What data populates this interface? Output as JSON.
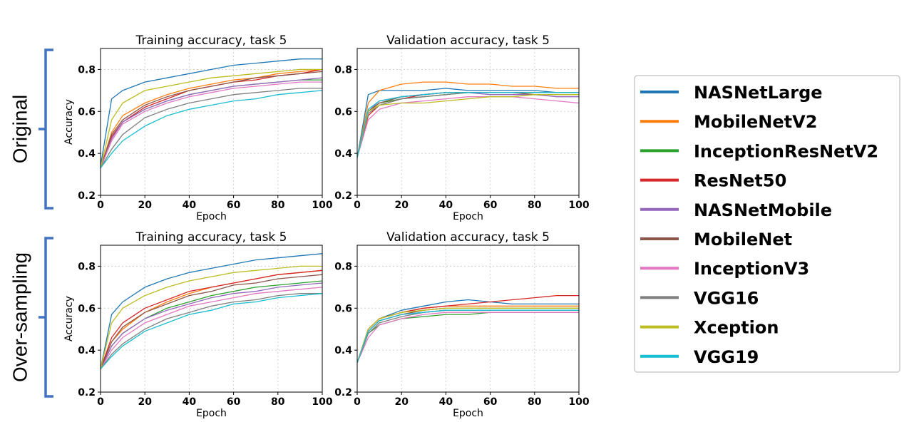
{
  "row_labels": [
    "Original",
    "Over-sampling"
  ],
  "legend": [
    {
      "name": "NASNetLarge",
      "color": "#1f77b4"
    },
    {
      "name": "MobileNetV2",
      "color": "#ff7f0e"
    },
    {
      "name": "InceptionResNetV2",
      "color": "#2ca02c"
    },
    {
      "name": "ResNet50",
      "color": "#d62728"
    },
    {
      "name": "NASNetMobile",
      "color": "#9467bd"
    },
    {
      "name": "MobileNet",
      "color": "#8c564b"
    },
    {
      "name": "InceptionV3",
      "color": "#e377c2"
    },
    {
      "name": "VGG16",
      "color": "#7f7f7f"
    },
    {
      "name": "Xception",
      "color": "#bcbd22"
    },
    {
      "name": "VGG19",
      "color": "#17becf"
    }
  ],
  "chart_data": [
    {
      "type": "line",
      "title": "Training accuracy, task 5",
      "xlabel": "Epoch",
      "ylabel": "Accuracy",
      "xlim": [
        0,
        100
      ],
      "ylim": [
        0.2,
        0.9
      ],
      "xticks": [
        "0",
        "20",
        "40",
        "60",
        "80",
        "100"
      ],
      "yticks": [
        "0.2",
        "0.4",
        "0.6",
        "0.8"
      ],
      "grid": true,
      "x": [
        0,
        5,
        10,
        20,
        30,
        40,
        50,
        60,
        70,
        80,
        90,
        100
      ],
      "series": [
        {
          "name": "NASNetLarge",
          "values": [
            0.34,
            0.66,
            0.7,
            0.74,
            0.76,
            0.78,
            0.8,
            0.82,
            0.83,
            0.84,
            0.85,
            0.85
          ]
        },
        {
          "name": "MobileNetV2",
          "values": [
            0.33,
            0.5,
            0.58,
            0.64,
            0.68,
            0.71,
            0.73,
            0.75,
            0.76,
            0.78,
            0.79,
            0.8
          ]
        },
        {
          "name": "InceptionResNetV2",
          "values": [
            0.33,
            0.48,
            0.55,
            0.61,
            0.65,
            0.68,
            0.7,
            0.72,
            0.73,
            0.74,
            0.75,
            0.75
          ]
        },
        {
          "name": "ResNet50",
          "values": [
            0.33,
            0.48,
            0.55,
            0.62,
            0.66,
            0.7,
            0.72,
            0.74,
            0.75,
            0.77,
            0.78,
            0.8
          ]
        },
        {
          "name": "NASNetMobile",
          "values": [
            0.33,
            0.47,
            0.55,
            0.61,
            0.65,
            0.68,
            0.7,
            0.72,
            0.73,
            0.74,
            0.75,
            0.76
          ]
        },
        {
          "name": "MobileNet",
          "values": [
            0.33,
            0.49,
            0.56,
            0.63,
            0.67,
            0.7,
            0.72,
            0.74,
            0.76,
            0.77,
            0.78,
            0.79
          ]
        },
        {
          "name": "InceptionV3",
          "values": [
            0.33,
            0.46,
            0.54,
            0.6,
            0.64,
            0.67,
            0.69,
            0.71,
            0.72,
            0.73,
            0.74,
            0.74
          ]
        },
        {
          "name": "VGG16",
          "values": [
            0.33,
            0.42,
            0.49,
            0.57,
            0.61,
            0.64,
            0.66,
            0.68,
            0.69,
            0.7,
            0.71,
            0.71
          ]
        },
        {
          "name": "Xception",
          "values": [
            0.33,
            0.56,
            0.64,
            0.7,
            0.72,
            0.74,
            0.76,
            0.77,
            0.78,
            0.79,
            0.8,
            0.8
          ]
        },
        {
          "name": "VGG19",
          "values": [
            0.33,
            0.4,
            0.46,
            0.53,
            0.58,
            0.61,
            0.63,
            0.65,
            0.66,
            0.68,
            0.69,
            0.7
          ]
        }
      ]
    },
    {
      "type": "line",
      "title": "Validation accuracy, task 5",
      "xlabel": "Epoch",
      "ylabel": "",
      "xlim": [
        0,
        100
      ],
      "ylim": [
        0.2,
        0.9
      ],
      "xticks": [
        "0",
        "20",
        "40",
        "60",
        "80",
        "100"
      ],
      "yticks": [
        "0.2",
        "0.4",
        "0.6",
        "0.8"
      ],
      "grid": true,
      "x": [
        0,
        5,
        10,
        20,
        30,
        40,
        50,
        60,
        70,
        80,
        90,
        100
      ],
      "series": [
        {
          "name": "NASNetLarge",
          "values": [
            0.38,
            0.68,
            0.7,
            0.7,
            0.7,
            0.71,
            0.7,
            0.7,
            0.7,
            0.7,
            0.69,
            0.69
          ]
        },
        {
          "name": "MobileNetV2",
          "values": [
            0.38,
            0.64,
            0.7,
            0.73,
            0.74,
            0.74,
            0.73,
            0.73,
            0.72,
            0.72,
            0.71,
            0.71
          ]
        },
        {
          "name": "InceptionResNetV2",
          "values": [
            0.38,
            0.6,
            0.64,
            0.66,
            0.67,
            0.68,
            0.69,
            0.69,
            0.69,
            0.69,
            0.69,
            0.69
          ]
        },
        {
          "name": "ResNet50",
          "values": [
            0.38,
            0.58,
            0.63,
            0.66,
            0.68,
            0.69,
            0.69,
            0.69,
            0.69,
            0.69,
            0.69,
            0.69
          ]
        },
        {
          "name": "NASNetMobile",
          "values": [
            0.38,
            0.6,
            0.65,
            0.67,
            0.68,
            0.69,
            0.69,
            0.68,
            0.68,
            0.68,
            0.67,
            0.67
          ]
        },
        {
          "name": "MobileNet",
          "values": [
            0.38,
            0.6,
            0.64,
            0.67,
            0.68,
            0.69,
            0.69,
            0.69,
            0.69,
            0.68,
            0.68,
            0.68
          ]
        },
        {
          "name": "InceptionV3",
          "values": [
            0.38,
            0.56,
            0.61,
            0.64,
            0.65,
            0.66,
            0.67,
            0.67,
            0.67,
            0.66,
            0.65,
            0.64
          ]
        },
        {
          "name": "VGG16",
          "values": [
            0.38,
            0.59,
            0.63,
            0.66,
            0.67,
            0.68,
            0.69,
            0.69,
            0.69,
            0.69,
            0.69,
            0.69
          ]
        },
        {
          "name": "Xception",
          "values": [
            0.38,
            0.6,
            0.63,
            0.64,
            0.64,
            0.65,
            0.66,
            0.67,
            0.67,
            0.68,
            0.68,
            0.68
          ]
        },
        {
          "name": "VGG19",
          "values": [
            0.38,
            0.61,
            0.65,
            0.67,
            0.68,
            0.69,
            0.69,
            0.69,
            0.69,
            0.69,
            0.69,
            0.69
          ]
        }
      ]
    },
    {
      "type": "line",
      "title": "Training accuracy, task 5",
      "xlabel": "Epoch",
      "ylabel": "Accuracy",
      "xlim": [
        0,
        100
      ],
      "ylim": [
        0.2,
        0.9
      ],
      "xticks": [
        "0",
        "20",
        "40",
        "60",
        "80",
        "100"
      ],
      "yticks": [
        "0.2",
        "0.4",
        "0.6",
        "0.8"
      ],
      "grid": true,
      "x": [
        0,
        5,
        10,
        20,
        30,
        40,
        50,
        60,
        70,
        80,
        90,
        100
      ],
      "series": [
        {
          "name": "NASNetLarge",
          "values": [
            0.31,
            0.57,
            0.63,
            0.7,
            0.74,
            0.77,
            0.79,
            0.81,
            0.83,
            0.84,
            0.85,
            0.86
          ]
        },
        {
          "name": "MobileNetV2",
          "values": [
            0.31,
            0.44,
            0.5,
            0.58,
            0.63,
            0.67,
            0.7,
            0.72,
            0.74,
            0.76,
            0.77,
            0.78
          ]
        },
        {
          "name": "InceptionResNetV2",
          "values": [
            0.31,
            0.42,
            0.48,
            0.55,
            0.6,
            0.63,
            0.66,
            0.68,
            0.7,
            0.71,
            0.72,
            0.73
          ]
        },
        {
          "name": "ResNet50",
          "values": [
            0.31,
            0.46,
            0.53,
            0.6,
            0.64,
            0.68,
            0.7,
            0.72,
            0.74,
            0.76,
            0.77,
            0.78
          ]
        },
        {
          "name": "NASNetMobile",
          "values": [
            0.31,
            0.42,
            0.48,
            0.55,
            0.59,
            0.62,
            0.65,
            0.67,
            0.68,
            0.7,
            0.71,
            0.72
          ]
        },
        {
          "name": "MobileNet",
          "values": [
            0.31,
            0.44,
            0.51,
            0.58,
            0.62,
            0.66,
            0.68,
            0.71,
            0.72,
            0.74,
            0.75,
            0.76
          ]
        },
        {
          "name": "InceptionV3",
          "values": [
            0.31,
            0.4,
            0.46,
            0.53,
            0.57,
            0.61,
            0.63,
            0.65,
            0.67,
            0.68,
            0.69,
            0.7
          ]
        },
        {
          "name": "VGG16",
          "values": [
            0.31,
            0.38,
            0.43,
            0.5,
            0.55,
            0.58,
            0.61,
            0.63,
            0.64,
            0.66,
            0.67,
            0.67
          ]
        },
        {
          "name": "Xception",
          "values": [
            0.31,
            0.53,
            0.6,
            0.66,
            0.7,
            0.73,
            0.75,
            0.77,
            0.78,
            0.79,
            0.8,
            0.8
          ]
        },
        {
          "name": "VGG19",
          "values": [
            0.31,
            0.37,
            0.42,
            0.49,
            0.53,
            0.57,
            0.59,
            0.62,
            0.63,
            0.65,
            0.66,
            0.67
          ]
        }
      ]
    },
    {
      "type": "line",
      "title": "Validation accuracy, task 5",
      "xlabel": "Epoch",
      "ylabel": "",
      "xlim": [
        0,
        100
      ],
      "ylim": [
        0.2,
        0.9
      ],
      "xticks": [
        "0",
        "20",
        "40",
        "60",
        "80",
        "100"
      ],
      "yticks": [
        "0.2",
        "0.4",
        "0.6",
        "0.8"
      ],
      "grid": true,
      "x": [
        0,
        5,
        10,
        20,
        30,
        40,
        50,
        60,
        70,
        80,
        90,
        100
      ],
      "series": [
        {
          "name": "NASNetLarge",
          "values": [
            0.34,
            0.5,
            0.55,
            0.59,
            0.61,
            0.63,
            0.64,
            0.63,
            0.62,
            0.62,
            0.62,
            0.62
          ]
        },
        {
          "name": "MobileNetV2",
          "values": [
            0.34,
            0.5,
            0.55,
            0.58,
            0.6,
            0.61,
            0.61,
            0.61,
            0.61,
            0.61,
            0.61,
            0.61
          ]
        },
        {
          "name": "InceptionResNetV2",
          "values": [
            0.34,
            0.48,
            0.52,
            0.55,
            0.56,
            0.57,
            0.57,
            0.58,
            0.58,
            0.58,
            0.58,
            0.58
          ]
        },
        {
          "name": "ResNet50",
          "values": [
            0.34,
            0.5,
            0.55,
            0.58,
            0.6,
            0.61,
            0.62,
            0.63,
            0.64,
            0.65,
            0.66,
            0.66
          ]
        },
        {
          "name": "NASNetMobile",
          "values": [
            0.34,
            0.49,
            0.54,
            0.57,
            0.58,
            0.59,
            0.59,
            0.59,
            0.59,
            0.59,
            0.59,
            0.59
          ]
        },
        {
          "name": "MobileNet",
          "values": [
            0.34,
            0.49,
            0.54,
            0.57,
            0.59,
            0.6,
            0.6,
            0.6,
            0.6,
            0.6,
            0.6,
            0.6
          ]
        },
        {
          "name": "InceptionV3",
          "values": [
            0.34,
            0.46,
            0.52,
            0.55,
            0.57,
            0.58,
            0.58,
            0.58,
            0.58,
            0.58,
            0.58,
            0.58
          ]
        },
        {
          "name": "VGG16",
          "values": [
            0.34,
            0.48,
            0.53,
            0.56,
            0.58,
            0.59,
            0.59,
            0.59,
            0.59,
            0.59,
            0.59,
            0.59
          ]
        },
        {
          "name": "Xception",
          "values": [
            0.34,
            0.5,
            0.55,
            0.58,
            0.59,
            0.6,
            0.6,
            0.6,
            0.6,
            0.6,
            0.6,
            0.6
          ]
        },
        {
          "name": "VGG19",
          "values": [
            0.34,
            0.49,
            0.54,
            0.57,
            0.58,
            0.59,
            0.59,
            0.59,
            0.59,
            0.59,
            0.59,
            0.59
          ]
        }
      ]
    }
  ]
}
